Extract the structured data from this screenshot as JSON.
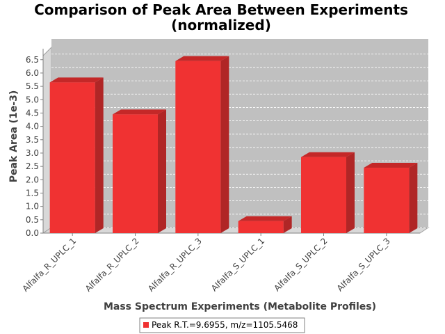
{
  "chart_data": {
    "type": "bar",
    "title_line1": "Comparison of Peak Area Between Experiments",
    "title_line2": "(normalized)",
    "xlabel": "Mass Spectrum Experiments (Metabolite Profiles)",
    "ylabel": "Peak Area (1e-3)",
    "categories": [
      "Alfalfa_R_UPLC_1",
      "Alfalfa_R_UPLC_2",
      "Alfalfa_R_UPLC_3",
      "Alfalfa_S_UPLC_1",
      "Alfalfa_S_UPLC_2",
      "Alfalfa_S_UPLC_3"
    ],
    "series": [
      {
        "name": "Peak R.T.=9.6955, m/z=1105.5468",
        "values": [
          5.65,
          4.45,
          6.45,
          0.45,
          2.85,
          2.45
        ]
      }
    ],
    "ylim": [
      0,
      6.65
    ],
    "yticks": [
      "0.0",
      "0.5",
      "1.0",
      "1.5",
      "2.0",
      "2.5",
      "3.0",
      "3.5",
      "4.0",
      "4.5",
      "5.0",
      "5.5",
      "6.0",
      "6.5"
    ],
    "grid": true,
    "legend_position": "bottom",
    "colors": {
      "bar": "#f03232",
      "bar_top": "#c42828",
      "bar_side": "#b02626",
      "plot_bg": "#c0c0c0",
      "wall": "#d8d8d8"
    }
  }
}
